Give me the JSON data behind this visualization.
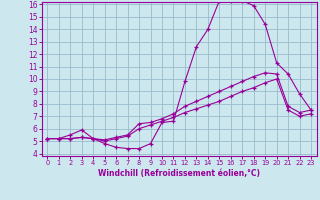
{
  "xlabel": "Windchill (Refroidissement éolien,°C)",
  "background_color": "#cce8ee",
  "grid_color": "#99bbcc",
  "line_color": "#990099",
  "xmin": 0,
  "xmax": 23,
  "ymin": 4,
  "ymax": 16,
  "yticks": [
    4,
    5,
    6,
    7,
    8,
    9,
    10,
    11,
    12,
    13,
    14,
    15,
    16
  ],
  "xticks": [
    0,
    1,
    2,
    3,
    4,
    5,
    6,
    7,
    8,
    9,
    10,
    11,
    12,
    13,
    14,
    15,
    16,
    17,
    18,
    19,
    20,
    21,
    22,
    23
  ],
  "curve1_x": [
    0,
    1,
    2,
    3,
    4,
    5,
    6,
    7,
    8,
    9,
    10,
    11,
    12,
    13,
    14,
    15,
    16,
    17,
    18,
    19,
    20,
    21,
    22,
    23
  ],
  "curve1_y": [
    5.2,
    5.2,
    5.5,
    5.9,
    5.2,
    4.8,
    4.5,
    4.4,
    4.4,
    4.8,
    6.5,
    6.6,
    9.8,
    12.6,
    14.0,
    16.3,
    16.3,
    16.3,
    15.9,
    14.4,
    11.3,
    10.4,
    8.8,
    7.5
  ],
  "curve2_x": [
    0,
    1,
    2,
    3,
    4,
    5,
    6,
    7,
    8,
    9,
    10,
    11,
    12,
    13,
    14,
    15,
    16,
    17,
    18,
    19,
    20,
    21,
    22,
    23
  ],
  "curve2_y": [
    5.2,
    5.2,
    5.2,
    5.3,
    5.2,
    5.1,
    5.3,
    5.5,
    6.4,
    6.5,
    6.8,
    7.2,
    7.8,
    8.2,
    8.6,
    9.0,
    9.4,
    9.8,
    10.2,
    10.5,
    10.4,
    7.8,
    7.3,
    7.5
  ],
  "curve3_x": [
    0,
    1,
    2,
    3,
    4,
    5,
    6,
    7,
    8,
    9,
    10,
    11,
    12,
    13,
    14,
    15,
    16,
    17,
    18,
    19,
    20,
    21,
    22,
    23
  ],
  "curve3_y": [
    5.2,
    5.2,
    5.2,
    5.3,
    5.2,
    5.0,
    5.2,
    5.4,
    6.0,
    6.3,
    6.6,
    6.9,
    7.3,
    7.6,
    7.9,
    8.2,
    8.6,
    9.0,
    9.3,
    9.7,
    10.0,
    7.5,
    7.0,
    7.2
  ],
  "xlabel_fontsize": 5.5,
  "tick_fontsize_x": 4.8,
  "tick_fontsize_y": 5.5
}
